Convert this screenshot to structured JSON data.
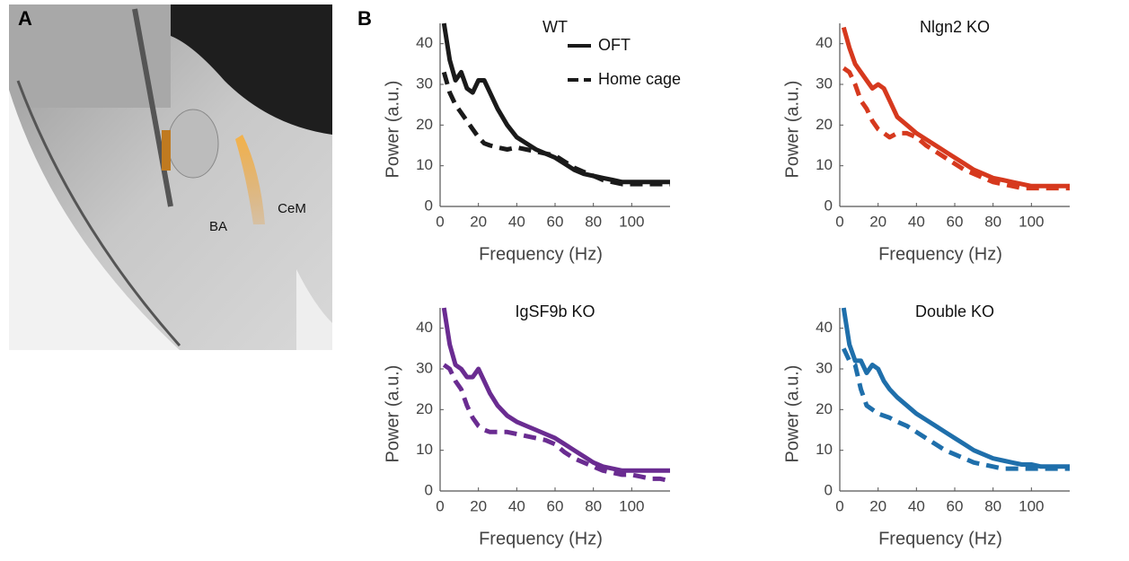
{
  "panel_a": {
    "label": "A",
    "regions": [
      "BA",
      "CeM"
    ]
  },
  "panel_b": {
    "label": "B"
  },
  "chart_data": [
    {
      "type": "line",
      "title": "WT",
      "x_label": "Frequency (Hz)",
      "y_label": "Power (a.u.)",
      "x": [
        2,
        5,
        8,
        11,
        14,
        17,
        20,
        23,
        26,
        30,
        35,
        40,
        45,
        50,
        55,
        60,
        65,
        70,
        75,
        80,
        85,
        90,
        95,
        100,
        105,
        110,
        115,
        120
      ],
      "xlim": [
        0,
        120
      ],
      "ylim": [
        0,
        45
      ],
      "xticks": [
        0,
        20,
        40,
        60,
        80,
        100
      ],
      "yticks": [
        0,
        10,
        20,
        30,
        40
      ],
      "legend": "upper right",
      "series": [
        {
          "name": "OFT",
          "color": "#1a1a1a",
          "dash": false,
          "values": [
            45,
            36,
            31,
            33,
            29,
            28,
            31,
            31,
            28,
            24,
            20,
            17,
            15.5,
            14,
            13,
            12,
            10.5,
            9,
            8,
            7.5,
            7,
            6.5,
            6,
            6,
            6,
            6,
            6,
            6
          ]
        },
        {
          "name": "Home cage",
          "color": "#1a1a1a",
          "dash": true,
          "values": [
            33,
            28,
            25,
            23,
            21,
            19,
            17,
            15.5,
            15,
            14.5,
            14,
            14.5,
            14,
            13.5,
            13,
            12.5,
            11,
            9.5,
            8.5,
            7.5,
            6.5,
            6,
            5.5,
            5.5,
            5.5,
            5.5,
            5.5,
            5.5
          ]
        }
      ]
    },
    {
      "type": "line",
      "title": "Nlgn2 KO",
      "x_label": "Frequency (Hz)",
      "y_label": "Power (a.u.)",
      "x": [
        2,
        5,
        8,
        11,
        14,
        17,
        20,
        23,
        26,
        30,
        35,
        40,
        45,
        50,
        55,
        60,
        65,
        70,
        75,
        80,
        85,
        90,
        95,
        100,
        105,
        110,
        115,
        120
      ],
      "xlim": [
        0,
        120
      ],
      "ylim": [
        0,
        45
      ],
      "xticks": [
        0,
        20,
        40,
        60,
        80,
        100
      ],
      "yticks": [
        0,
        10,
        20,
        30,
        40
      ],
      "series": [
        {
          "color": "#d6391e",
          "dash": false,
          "values": [
            44,
            39,
            35,
            33,
            31,
            29,
            30,
            29,
            26,
            22,
            20,
            18,
            16.5,
            15,
            13.5,
            12,
            10.5,
            9,
            8,
            7,
            6.5,
            6,
            5.5,
            5,
            5,
            5,
            5,
            5
          ]
        },
        {
          "color": "#d6391e",
          "dash": true,
          "values": [
            34,
            33,
            30,
            26,
            24,
            21,
            19,
            18,
            17,
            18,
            18,
            17,
            15,
            13.5,
            12,
            10.5,
            9,
            8,
            7,
            6,
            5.5,
            5,
            4.5,
            4.5,
            4.5,
            4.5,
            4.5,
            4.5
          ]
        }
      ]
    },
    {
      "type": "line",
      "title": "IgSF9b KO",
      "x_label": "Frequency (Hz)",
      "y_label": "Power (a.u.)",
      "x": [
        2,
        5,
        8,
        11,
        14,
        17,
        20,
        23,
        26,
        30,
        35,
        40,
        45,
        50,
        55,
        60,
        65,
        70,
        75,
        80,
        85,
        90,
        95,
        100,
        105,
        110,
        115,
        120
      ],
      "xlim": [
        0,
        120
      ],
      "ylim": [
        0,
        45
      ],
      "xticks": [
        0,
        20,
        40,
        60,
        80,
        100
      ],
      "yticks": [
        0,
        10,
        20,
        30,
        40
      ],
      "series": [
        {
          "color": "#6a2c91",
          "dash": false,
          "values": [
            45,
            36,
            31,
            30,
            28,
            28,
            30,
            27,
            24,
            21,
            18.5,
            17,
            16,
            15,
            14,
            13,
            11.5,
            10,
            8.5,
            7,
            6,
            5.5,
            5,
            5,
            5,
            5,
            5,
            5
          ]
        },
        {
          "color": "#6a2c91",
          "dash": true,
          "values": [
            31,
            30,
            27,
            25,
            21,
            18,
            16,
            15,
            14.5,
            14.5,
            14.5,
            14,
            13.5,
            13,
            12.5,
            11.5,
            9.5,
            8,
            7,
            6,
            5,
            4.5,
            4,
            4,
            3.5,
            3,
            3,
            2.5
          ]
        }
      ]
    },
    {
      "type": "line",
      "title": "Double KO",
      "x_label": "Frequency (Hz)",
      "y_label": "Power (a.u.)",
      "x": [
        2,
        5,
        8,
        11,
        14,
        17,
        20,
        23,
        26,
        30,
        35,
        40,
        45,
        50,
        55,
        60,
        65,
        70,
        75,
        80,
        85,
        90,
        95,
        100,
        105,
        110,
        115,
        120
      ],
      "xlim": [
        0,
        120
      ],
      "ylim": [
        0,
        45
      ],
      "xticks": [
        0,
        20,
        40,
        60,
        80,
        100
      ],
      "yticks": [
        0,
        10,
        20,
        30,
        40
      ],
      "series": [
        {
          "color": "#1f6fab",
          "dash": false,
          "values": [
            45,
            36,
            32,
            32,
            29,
            31,
            30,
            27,
            25,
            23,
            21,
            19,
            17.5,
            16,
            14.5,
            13,
            11.5,
            10,
            9,
            8,
            7.5,
            7,
            6.5,
            6.5,
            6,
            6,
            6,
            6
          ]
        },
        {
          "color": "#1f6fab",
          "dash": true,
          "values": [
            35,
            32,
            31,
            25,
            21,
            20,
            19,
            18.5,
            18,
            17,
            16,
            14.5,
            13,
            11.5,
            10,
            9,
            8,
            7,
            6.5,
            6,
            5.5,
            5.5,
            5.5,
            5.5,
            5.5,
            5.5,
            5.5,
            5.5
          ]
        }
      ]
    }
  ]
}
